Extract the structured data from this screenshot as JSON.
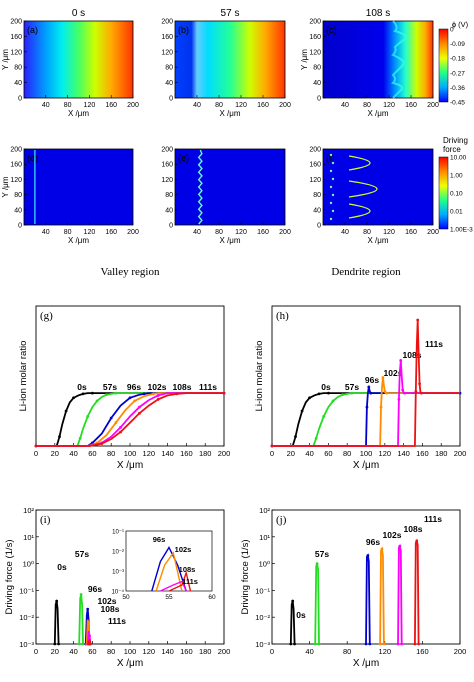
{
  "chart_data": [
    {
      "panel": "a",
      "type": "heatmap",
      "time_label": "0 s",
      "xlabel": "X /μm",
      "ylabel": "Y /μm",
      "xticks": [
        "40",
        "80",
        "120",
        "160",
        "200"
      ],
      "yticks": [
        "0",
        "40",
        "80",
        "120",
        "160",
        "200"
      ],
      "field": "potential"
    },
    {
      "panel": "b",
      "type": "heatmap",
      "time_label": "57 s",
      "xlabel": "X /μm",
      "ylabel": "",
      "xticks": [
        "40",
        "80",
        "120",
        "160",
        "200"
      ],
      "yticks": [
        "0",
        "40",
        "80",
        "120",
        "160",
        "200"
      ],
      "field": "potential"
    },
    {
      "panel": "c",
      "type": "heatmap",
      "time_label": "108 s",
      "xlabel": "X /μm",
      "ylabel": "Y /μm",
      "xticks": [
        "40",
        "80",
        "120",
        "160",
        "200"
      ],
      "yticks": [
        "0",
        "40",
        "80",
        "120",
        "160",
        "200"
      ],
      "field": "potential",
      "colorbar": {
        "title": "ϕ (V)",
        "ticks": [
          "0",
          "-0.09",
          "-0.18",
          "-0.27",
          "-0.36",
          "-0.45"
        ]
      }
    },
    {
      "panel": "d",
      "type": "heatmap",
      "time_label": "",
      "xlabel": "X /μm",
      "ylabel": "Y /μm",
      "xticks": [
        "40",
        "80",
        "120",
        "160",
        "200"
      ],
      "yticks": [
        "0",
        "40",
        "80",
        "120",
        "160",
        "200"
      ],
      "field": "driving_force",
      "interface_x": 20
    },
    {
      "panel": "e",
      "type": "heatmap",
      "time_label": "",
      "xlabel": "X /μm",
      "ylabel": "",
      "xticks": [
        "40",
        "80",
        "120",
        "160",
        "200"
      ],
      "yticks": [
        "0",
        "40",
        "80",
        "120",
        "160",
        "200"
      ],
      "field": "driving_force",
      "interface_x": 46
    },
    {
      "panel": "f",
      "type": "heatmap",
      "time_label": "",
      "xlabel": "X /μm",
      "ylabel": "",
      "xticks": [
        "40",
        "80",
        "120",
        "160",
        "200"
      ],
      "yticks": [
        "0",
        "40",
        "80",
        "120",
        "160",
        "200"
      ],
      "field": "driving_force",
      "colorbar": {
        "title": [
          "Driving",
          "force"
        ],
        "ticks": [
          "10.00",
          "1.00",
          "0.10",
          "0.01",
          "1.00E-3"
        ]
      }
    },
    {
      "panel": "g",
      "type": "line",
      "title": "Valley region",
      "xlabel": "X /μm",
      "ylabel": "Li-ion molar ratio",
      "xlim": [
        0,
        200
      ],
      "ylim": [
        0,
        0.18
      ],
      "xticks": [
        "0",
        "20",
        "40",
        "60",
        "80",
        "100",
        "120",
        "140",
        "160",
        "180",
        "200"
      ],
      "yticks": [],
      "series": [
        {
          "name": "0s",
          "color": "#000000",
          "x": [
            0,
            22,
            25,
            28,
            32,
            36,
            40,
            45,
            50,
            55,
            60,
            200
          ],
          "y": [
            0,
            0,
            0.012,
            0.028,
            0.045,
            0.056,
            0.062,
            0.065,
            0.067,
            0.068,
            0.068,
            0.068
          ]
        },
        {
          "name": "57s",
          "color": "#22dd22",
          "x": [
            0,
            44,
            47,
            50,
            55,
            60,
            65,
            70,
            75,
            80,
            85,
            200
          ],
          "y": [
            0,
            0,
            0.01,
            0.022,
            0.038,
            0.05,
            0.058,
            0.063,
            0.066,
            0.067,
            0.068,
            0.068
          ]
        },
        {
          "name": "96s",
          "color": "#0000cc",
          "x": [
            0,
            55,
            60,
            70,
            80,
            90,
            100,
            110,
            115,
            120,
            200
          ],
          "y": [
            0,
            0,
            0.004,
            0.016,
            0.036,
            0.052,
            0.062,
            0.066,
            0.067,
            0.068,
            0.068
          ]
        },
        {
          "name": "102s",
          "color": "#ff8c00",
          "x": [
            0,
            56,
            65,
            75,
            85,
            95,
            105,
            115,
            125,
            130,
            200
          ],
          "y": [
            0,
            0,
            0.004,
            0.014,
            0.03,
            0.046,
            0.058,
            0.064,
            0.067,
            0.068,
            0.068
          ]
        },
        {
          "name": "108s",
          "color": "#ff00ff",
          "x": [
            0,
            57,
            70,
            80,
            90,
            100,
            110,
            120,
            130,
            140,
            200
          ],
          "y": [
            0,
            0,
            0.004,
            0.012,
            0.024,
            0.038,
            0.05,
            0.059,
            0.065,
            0.068,
            0.068
          ]
        },
        {
          "name": "111s",
          "color": "#ee1111",
          "x": [
            0,
            57,
            70,
            80,
            90,
            100,
            110,
            120,
            130,
            140,
            150,
            160,
            200
          ],
          "y": [
            0,
            0,
            0.003,
            0.009,
            0.018,
            0.03,
            0.042,
            0.052,
            0.06,
            0.065,
            0.067,
            0.068,
            0.068
          ]
        }
      ]
    },
    {
      "panel": "h",
      "type": "line",
      "title": "Dendrite region",
      "xlabel": "X /μm",
      "ylabel": "Li-ion molar ratio",
      "xlim": [
        0,
        200
      ],
      "ylim": [
        0,
        0.18
      ],
      "xticks": [
        "0",
        "20",
        "40",
        "60",
        "80",
        "100",
        "120",
        "140",
        "160",
        "180",
        "200"
      ],
      "yticks": [],
      "series": [
        {
          "name": "0s",
          "color": "#000000",
          "x": [
            0,
            22,
            25,
            28,
            32,
            36,
            40,
            45,
            50,
            55,
            60,
            200
          ],
          "y": [
            0,
            0,
            0.012,
            0.028,
            0.045,
            0.056,
            0.062,
            0.065,
            0.067,
            0.068,
            0.068,
            0.068
          ]
        },
        {
          "name": "57s",
          "color": "#22dd22",
          "x": [
            0,
            44,
            47,
            50,
            55,
            60,
            65,
            70,
            75,
            80,
            85,
            200
          ],
          "y": [
            0,
            0,
            0.01,
            0.022,
            0.038,
            0.05,
            0.058,
            0.063,
            0.066,
            0.067,
            0.068,
            0.068
          ]
        },
        {
          "name": "96s",
          "color": "#0000cc",
          "x": [
            0,
            100,
            101,
            102,
            103,
            104,
            105,
            106,
            200
          ],
          "y": [
            0,
            0,
            0.05,
            0.068,
            0.076,
            0.07,
            0.068,
            0.068,
            0.068
          ]
        },
        {
          "name": "102s",
          "color": "#ff8c00",
          "x": [
            0,
            115,
            116,
            117,
            118,
            119,
            120,
            121,
            122,
            200
          ],
          "y": [
            0,
            0,
            0.05,
            0.075,
            0.088,
            0.078,
            0.07,
            0.068,
            0.068,
            0.068
          ]
        },
        {
          "name": "108s",
          "color": "#ff00ff",
          "x": [
            0,
            134,
            135,
            136,
            137,
            138,
            139,
            140,
            141,
            200
          ],
          "y": [
            0,
            0,
            0.06,
            0.095,
            0.11,
            0.09,
            0.072,
            0.068,
            0.068,
            0.068
          ]
        },
        {
          "name": "111s",
          "color": "#ee1111",
          "x": [
            0,
            152,
            153,
            154,
            155,
            156,
            157,
            158,
            159,
            200
          ],
          "y": [
            0,
            0,
            0.07,
            0.13,
            0.162,
            0.12,
            0.08,
            0.068,
            0.068,
            0.068
          ]
        }
      ]
    },
    {
      "panel": "i",
      "type": "line",
      "xlabel": "X /μm",
      "ylabel": "Driving force (1/s)",
      "xlim": [
        0,
        200
      ],
      "ylim_log": [
        -3,
        2
      ],
      "xticks": [
        "0",
        "20",
        "40",
        "60",
        "80",
        "100",
        "120",
        "140",
        "160",
        "180",
        "200"
      ],
      "yticks": [
        "10⁻³",
        "10⁻²",
        "10⁻¹",
        "10⁰",
        "10¹",
        "10²"
      ],
      "series": [
        {
          "name": "0s",
          "color": "#000000",
          "x": [
            20,
            21,
            22,
            23,
            24
          ],
          "y": [
            0.001,
            0.03,
            0.04,
            0.02,
            0.001
          ]
        },
        {
          "name": "57s",
          "color": "#22dd22",
          "x": [
            46,
            47,
            48,
            49,
            50
          ],
          "y": [
            0.001,
            0.05,
            0.07,
            0.03,
            0.001
          ]
        },
        {
          "name": "96s",
          "color": "#0000cc",
          "x": [
            53,
            54,
            55,
            56,
            57
          ],
          "y": [
            0.001,
            0.012,
            0.02,
            0.008,
            0.001
          ]
        },
        {
          "name": "102s",
          "color": "#ff8c00",
          "x": [
            54,
            55,
            56,
            57
          ],
          "y": [
            0.001,
            0.008,
            0.006,
            0.001
          ]
        },
        {
          "name": "108s",
          "color": "#ff00ff",
          "x": [
            55,
            56,
            57,
            58
          ],
          "y": [
            0.001,
            0.003,
            0.002,
            0.001
          ]
        },
        {
          "name": "111s",
          "color": "#ee1111",
          "x": [
            56,
            57,
            58
          ],
          "y": [
            0.001,
            0.0015,
            0.001
          ]
        }
      ],
      "inset": {
        "xlim": [
          50,
          60
        ],
        "xticks": [
          "50",
          "55",
          "60"
        ],
        "yticks": [
          "10⁻⁴",
          "10⁻³",
          "10⁻²",
          "10⁻¹"
        ],
        "series": [
          {
            "name": "96s",
            "color": "#0000cc",
            "x": [
              53,
              54,
              55,
              56,
              57
            ],
            "y": [
              0.0001,
              0.003,
              0.015,
              0.002,
              0.0001
            ]
          },
          {
            "name": "102s",
            "color": "#ff8c00",
            "x": [
              53.5,
              54.5,
              55.5,
              56.5
            ],
            "y": [
              0.0001,
              0.002,
              0.008,
              0.0001
            ]
          },
          {
            "name": "108s",
            "color": "#ff00ff",
            "x": [
              54,
              55.5,
              56.5,
              57
            ],
            "y": [
              0.0001,
              0.0002,
              0.0003,
              0.0001
            ]
          },
          {
            "name": "111s",
            "color": "#ee1111",
            "x": [
              55,
              56.5,
              57,
              57.5
            ],
            "y": [
              0.0001,
              0.0002,
              0.0008,
              0.0001
            ]
          }
        ]
      }
    },
    {
      "panel": "j",
      "type": "line",
      "xlabel": "X /μm",
      "ylabel": "Driving force (1/s)",
      "xlim": [
        0,
        200
      ],
      "ylim_log": [
        -3,
        2
      ],
      "xticks": [
        "0",
        "40",
        "80",
        "120",
        "160",
        "200"
      ],
      "yticks": [
        "10⁻³",
        "10⁻²",
        "10⁻¹",
        "10⁰",
        "10¹",
        "10²"
      ],
      "series": [
        {
          "name": "0s",
          "color": "#000000",
          "x": [
            20,
            21,
            22,
            23,
            24
          ],
          "y": [
            0.001,
            0.03,
            0.04,
            0.02,
            0.001
          ]
        },
        {
          "name": "57s",
          "color": "#22dd22",
          "x": [
            46,
            47,
            48,
            49,
            50
          ],
          "y": [
            0.001,
            0.8,
            1.0,
            0.6,
            0.001
          ]
        },
        {
          "name": "96s",
          "color": "#0000cc",
          "x": [
            100,
            101,
            102,
            103,
            104
          ],
          "y": [
            0.001,
            1.8,
            2.0,
            1.2,
            0.001
          ]
        },
        {
          "name": "102s",
          "color": "#ff8c00",
          "x": [
            115,
            116,
            117,
            118,
            119
          ],
          "y": [
            0.001,
            3.0,
            3.5,
            2.0,
            0.001
          ]
        },
        {
          "name": "108s",
          "color": "#ff00ff",
          "x": [
            134,
            135,
            136,
            137,
            138
          ],
          "y": [
            0.001,
            4.0,
            4.5,
            3.0,
            0.001
          ]
        },
        {
          "name": "111s",
          "color": "#ee1111",
          "x": [
            152,
            153,
            154,
            155,
            156
          ],
          "y": [
            0.001,
            6.0,
            7.0,
            5.0,
            0.001
          ]
        }
      ]
    }
  ]
}
